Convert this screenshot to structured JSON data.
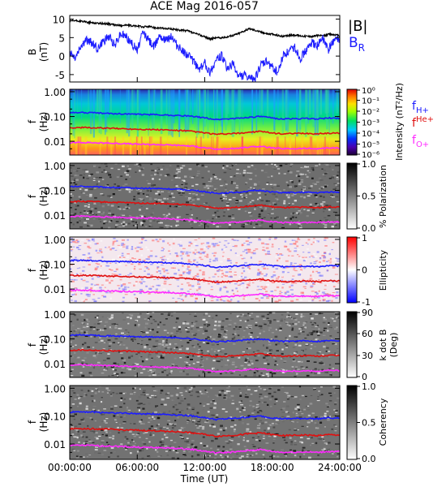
{
  "title": "ACE Mag 2016-057",
  "xlabel": "Time (UT)",
  "xticks": [
    "00:00:00",
    "06:00:00",
    "12:00:00",
    "18:00:00",
    "24:00:00"
  ],
  "chart_data": [
    {
      "type": "line",
      "panel": "B",
      "ylabel_main": "B",
      "ylabel_unit": "(nT)",
      "ylim": [
        -7,
        11
      ],
      "yticks": [
        "10",
        "5",
        "0",
        "-5"
      ],
      "xlim": [
        0,
        24
      ],
      "series": [
        {
          "name": "|B|",
          "color": "#000000",
          "x": [
            0,
            0.5,
            1,
            1.5,
            2,
            2.5,
            3,
            3.5,
            4,
            4.5,
            5,
            5.5,
            6,
            6.5,
            7,
            7.5,
            8,
            8.5,
            9,
            9.5,
            10,
            10.5,
            11,
            11.5,
            12,
            12.5,
            13,
            13.5,
            14,
            14.5,
            15,
            15.5,
            16,
            16.5,
            17,
            17.5,
            18,
            18.5,
            19,
            19.5,
            20,
            20.5,
            21,
            21.5,
            22,
            22.5,
            23,
            23.5,
            24
          ],
          "y": [
            9.4,
            9.6,
            9.4,
            9.2,
            9.0,
            8.9,
            8.8,
            8.7,
            8.4,
            8.3,
            8.4,
            8.2,
            8.1,
            7.9,
            8.0,
            7.7,
            7.6,
            7.4,
            7.4,
            7.1,
            7.0,
            6.8,
            6.2,
            5.8,
            5.2,
            4.6,
            5.0,
            4.9,
            5.2,
            5.6,
            6.1,
            6.8,
            7.4,
            7.0,
            6.5,
            6.1,
            5.9,
            5.6,
            5.3,
            5.6,
            5.7,
            5.5,
            5.4,
            5.3,
            5.6,
            5.4,
            5.9,
            5.8,
            5.5
          ]
        },
        {
          "name": "B",
          "subscript": "R",
          "color": "#1c1cff",
          "x": [
            0,
            0.5,
            1,
            1.5,
            2,
            2.5,
            3,
            3.5,
            4,
            4.5,
            5,
            5.5,
            6,
            6.5,
            7,
            7.5,
            8,
            8.5,
            9,
            9.5,
            10,
            10.5,
            11,
            11.5,
            12,
            12.5,
            13,
            13.5,
            14,
            14.5,
            15,
            15.5,
            16,
            16.5,
            17,
            17.5,
            18,
            18.5,
            19,
            19.5,
            20,
            20.5,
            21,
            21.5,
            22,
            22.5,
            23,
            23.5,
            24
          ],
          "y": [
            1.0,
            -0.5,
            2.8,
            4.2,
            3.5,
            2.0,
            4.0,
            5.2,
            3.0,
            6.0,
            5.5,
            3.5,
            1.5,
            6.5,
            4.5,
            2.5,
            6.0,
            4.0,
            5.5,
            3.0,
            1.5,
            0.5,
            -1.5,
            -3.5,
            -2.0,
            -4.5,
            -1.0,
            0.2,
            -3.5,
            -2.0,
            -5.5,
            -5.2,
            -6.3,
            -5.8,
            -2.5,
            -1.5,
            -3.0,
            -4.5,
            0.5,
            1.2,
            2.5,
            -0.5,
            1.5,
            3.5,
            2.8,
            4.8,
            1.5,
            4.6,
            4.2
          ]
        }
      ]
    },
    {
      "type": "heatmap",
      "panel": "Intensity",
      "ylabel_main": "f",
      "ylabel_unit": "(Hz)",
      "ylim": [
        0.003,
        1.0
      ],
      "yscale": "log",
      "yticks": [
        "1.00",
        "0.10",
        "0.01"
      ],
      "colorbar_label": "Intensity (nT²/Hz)",
      "colorbar_ticks": [
        "10⁰",
        "10⁻¹",
        "10⁻²",
        "10⁻³",
        "10⁻⁴",
        "10⁻⁵",
        "10⁻⁶"
      ],
      "colormap": "rainbow",
      "legend": [
        {
          "name": "f",
          "subscript": "H+",
          "color": "#1c1cff"
        },
        {
          "name": "f",
          "subscript": "He+",
          "color": "#e01010"
        },
        {
          "name": "f",
          "subscript": "O+",
          "color": "#ff2bff"
        }
      ]
    },
    {
      "type": "heatmap",
      "panel": "Polarization",
      "ylabel_main": "f",
      "ylabel_unit": "(Hz)",
      "yscale": "log",
      "yticks": [
        "1.00",
        "0.10",
        "0.01"
      ],
      "colorbar_label": "% Polarization",
      "colorbar_ticks": [
        "1.0",
        "0.5",
        "0.0"
      ],
      "colormap": "gray"
    },
    {
      "type": "heatmap",
      "panel": "Ellipticity",
      "ylabel_main": "f",
      "ylabel_unit": "(Hz)",
      "yscale": "log",
      "yticks": [
        "1.00",
        "0.10",
        "0.01"
      ],
      "colorbar_label": "Ellipticity",
      "colorbar_ticks": [
        "1",
        "0",
        "-1"
      ],
      "colormap": "bwr"
    },
    {
      "type": "heatmap",
      "panel": "k dot B",
      "ylabel_main": "f",
      "ylabel_unit": "(Hz)",
      "yscale": "log",
      "yticks": [
        "1.00",
        "0.10",
        "0.01"
      ],
      "colorbar_label": "k dot B",
      "colorbar_unit": "(Deg)",
      "colorbar_ticks": [
        "90",
        "60",
        "30",
        "0"
      ],
      "colormap": "gray"
    },
    {
      "type": "heatmap",
      "panel": "Coherency",
      "ylabel_main": "f",
      "ylabel_unit": "(Hz)",
      "yscale": "log",
      "yticks": [
        "1.00",
        "0.10",
        "0.01"
      ],
      "colorbar_label": "Coherency",
      "colorbar_ticks": [
        "1.0",
        "0.5",
        "0.0"
      ],
      "colormap": "gray"
    }
  ],
  "gyro_lines": {
    "x": [
      0,
      1,
      2,
      3,
      4,
      5,
      6,
      7,
      8,
      9,
      10,
      11,
      12,
      13,
      14,
      15,
      16,
      17,
      18,
      19,
      20,
      21,
      22,
      23,
      24
    ],
    "fH": [
      0.14,
      0.145,
      0.14,
      0.135,
      0.13,
      0.127,
      0.122,
      0.12,
      0.118,
      0.113,
      0.108,
      0.1,
      0.088,
      0.076,
      0.08,
      0.085,
      0.094,
      0.1,
      0.086,
      0.08,
      0.082,
      0.083,
      0.08,
      0.086,
      0.085
    ],
    "fHe": [
      0.035,
      0.036,
      0.035,
      0.034,
      0.033,
      0.032,
      0.031,
      0.03,
      0.0295,
      0.028,
      0.027,
      0.025,
      0.022,
      0.019,
      0.02,
      0.021,
      0.0235,
      0.025,
      0.0215,
      0.02,
      0.0205,
      0.021,
      0.02,
      0.0215,
      0.021
    ],
    "fO": [
      0.0088,
      0.009,
      0.0088,
      0.0085,
      0.0083,
      0.008,
      0.0077,
      0.0075,
      0.0074,
      0.0071,
      0.0068,
      0.0063,
      0.0055,
      0.0048,
      0.005,
      0.0053,
      0.0059,
      0.0063,
      0.0054,
      0.005,
      0.0051,
      0.0052,
      0.005,
      0.0054,
      0.0053
    ]
  }
}
